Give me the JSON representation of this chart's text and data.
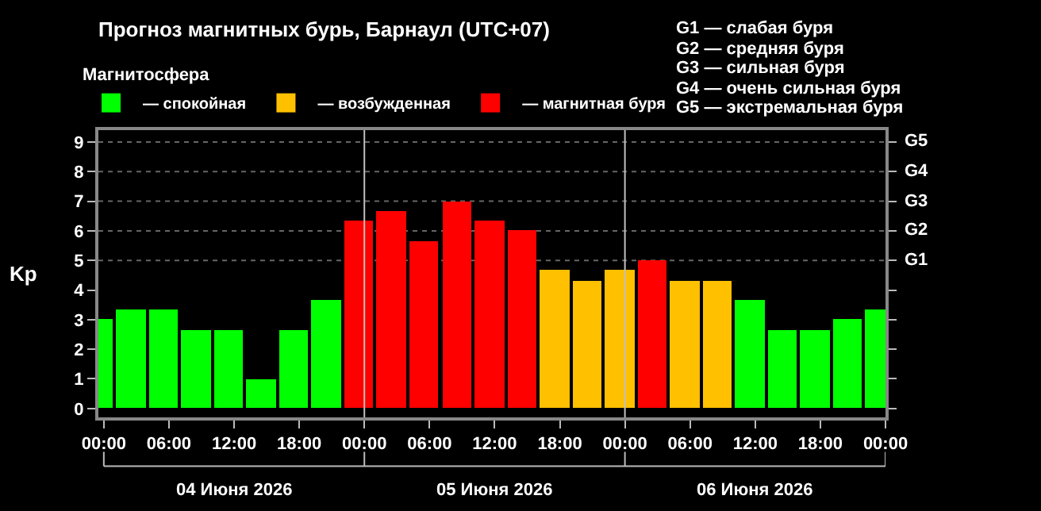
{
  "chart_data": {
    "type": "bar",
    "title": "Прогноз магнитных бурь, Барнаул (UTC+07)",
    "ylabel": "Kp",
    "legend_title": "Магнитосфера",
    "x": [
      "2026-06-03T23:30",
      "2026-06-04T02:30",
      "2026-06-04T05:30",
      "2026-06-04T08:30",
      "2026-06-04T11:30",
      "2026-06-04T14:30",
      "2026-06-04T17:30",
      "2026-06-04T20:30",
      "2026-06-04T23:30",
      "2026-06-05T02:30",
      "2026-06-05T05:30",
      "2026-06-05T08:30",
      "2026-06-05T11:30",
      "2026-06-05T14:30",
      "2026-06-05T17:30",
      "2026-06-05T20:30",
      "2026-06-05T23:30",
      "2026-06-06T02:30",
      "2026-06-06T05:30",
      "2026-06-06T08:30",
      "2026-06-06T11:30",
      "2026-06-06T14:30",
      "2026-06-06T17:30",
      "2026-06-06T20:30",
      "2026-06-06T23:30"
    ],
    "series": [
      {
        "name": "— спокойная",
        "color": "#00ff00",
        "values": [
          3.0,
          3.33,
          3.33,
          2.67,
          2.67,
          1.0,
          2.67,
          3.67,
          null,
          null,
          null,
          null,
          null,
          null,
          null,
          null,
          null,
          null,
          null,
          null,
          3.67,
          2.67,
          2.67,
          3.0,
          3.33
        ]
      },
      {
        "name": "— возбужденная",
        "color": "#ffc000",
        "values": [
          null,
          null,
          null,
          null,
          null,
          null,
          null,
          null,
          null,
          null,
          null,
          null,
          null,
          null,
          4.67,
          4.33,
          4.67,
          null,
          4.33,
          4.33,
          null,
          null,
          null,
          null,
          null
        ]
      },
      {
        "name": "— магнитная буря",
        "color": "#ff0000",
        "values": [
          null,
          null,
          null,
          null,
          null,
          null,
          null,
          null,
          6.33,
          6.67,
          5.67,
          7.0,
          6.33,
          6.0,
          null,
          null,
          null,
          5.0,
          null,
          null,
          null,
          null,
          null,
          null,
          null
        ]
      }
    ],
    "xlim": [
      "2026-06-03T23:30",
      "2026-06-07T00:00"
    ],
    "xticks": [
      {
        "value": "2026-06-04T00:00",
        "label": "00:00"
      },
      {
        "value": "2026-06-04T06:00",
        "label": "06:00"
      },
      {
        "value": "2026-06-04T12:00",
        "label": "12:00"
      },
      {
        "value": "2026-06-04T18:00",
        "label": "18:00"
      },
      {
        "value": "2026-06-05T00:00",
        "label": "00:00"
      },
      {
        "value": "2026-06-05T06:00",
        "label": "06:00"
      },
      {
        "value": "2026-06-05T12:00",
        "label": "12:00"
      },
      {
        "value": "2026-06-05T18:00",
        "label": "18:00"
      },
      {
        "value": "2026-06-06T00:00",
        "label": "00:00"
      },
      {
        "value": "2026-06-06T06:00",
        "label": "06:00"
      },
      {
        "value": "2026-06-06T12:00",
        "label": "12:00"
      },
      {
        "value": "2026-06-06T18:00",
        "label": "18:00"
      },
      {
        "value": "2026-06-07T00:00",
        "label": "00:00"
      }
    ],
    "ylim": [
      -0.3,
      9.4
    ],
    "yticks": [
      0,
      1,
      2,
      3,
      4,
      5,
      6,
      7,
      8,
      9
    ],
    "ref_lines": [
      {
        "axis": "x",
        "value": "2026-06-05T00:00",
        "color": "#c0c0c0"
      },
      {
        "axis": "x",
        "value": "2026-06-06T00:00",
        "color": "#c0c0c0"
      },
      {
        "axis": "y",
        "value": 5,
        "label": "G1",
        "color": "#666666",
        "line_style": "dotted"
      },
      {
        "axis": "y",
        "value": 6,
        "label": "G2",
        "color": "#666666",
        "line_style": "dotted"
      },
      {
        "axis": "y",
        "value": 7,
        "label": "G3",
        "color": "#666666",
        "line_style": "dotted"
      },
      {
        "axis": "y",
        "value": 8,
        "label": "G4",
        "color": "#666666",
        "line_style": "dotted"
      },
      {
        "axis": "y",
        "value": 9,
        "label": "G5",
        "color": "#666666",
        "line_style": "dotted"
      }
    ],
    "annotations": [
      "04 Июня 2026",
      "05 Июня 2026",
      "06 Июня 2026",
      "G1 — слабая буря",
      "G2 — средняя буря",
      "G3 — сильная буря",
      "G4 — очень сильная буря",
      "G5 — экстремальная буря"
    ],
    "legend": "top left"
  }
}
